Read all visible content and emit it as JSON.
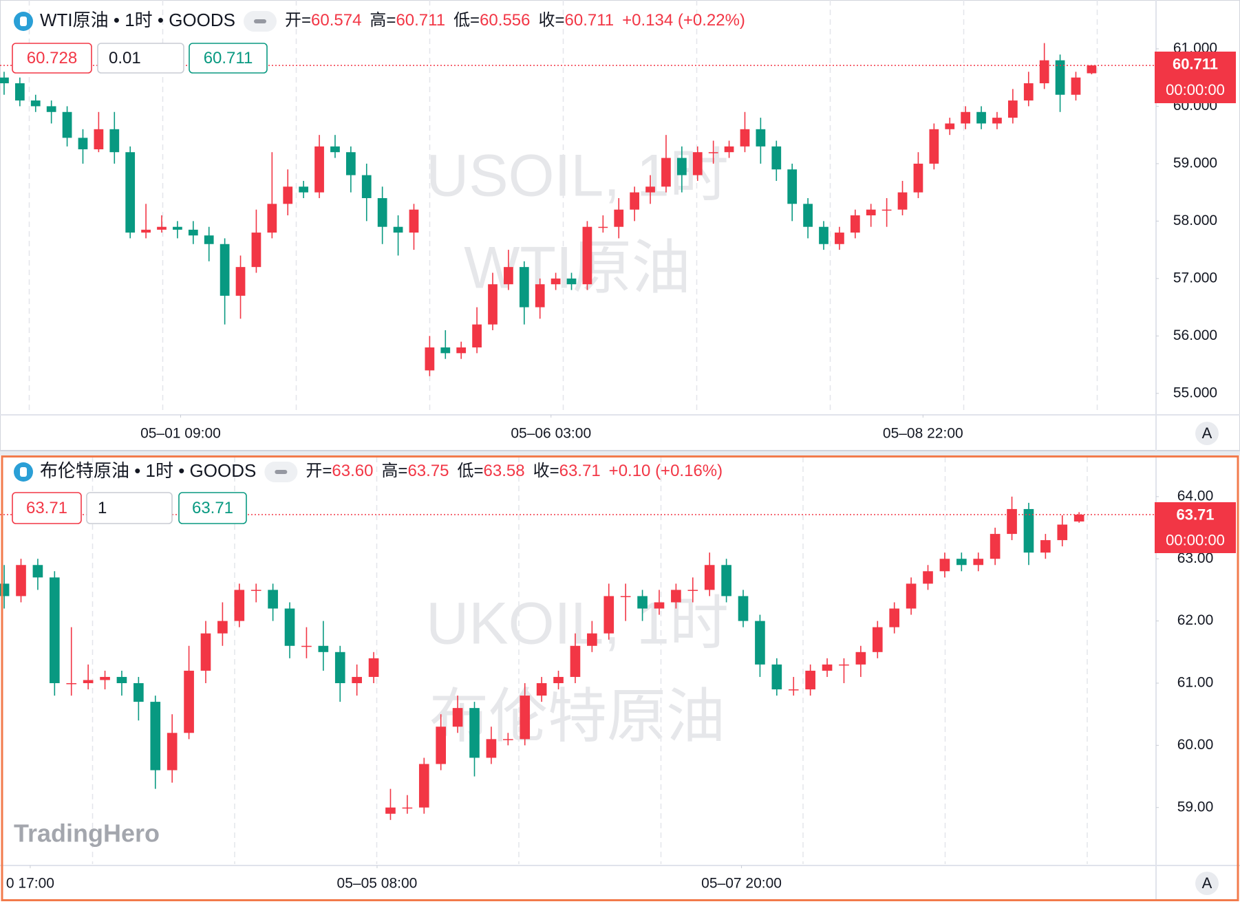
{
  "chart_data": [
    {
      "type": "candlestick",
      "symbol": "WTI原油 • 1时 • GOODS",
      "ohlc_names": [
        "开=",
        "高=",
        "低=",
        "收="
      ],
      "ohlc_values": [
        "60.574",
        "60.711",
        "60.556",
        "60.711"
      ],
      "change": "+0.134 (+0.22%)",
      "buttons": [
        "60.728",
        "0.01",
        "60.711"
      ],
      "price_tag": "60.711",
      "countdown": "00:00:00",
      "watermark": [
        "USOIL, 1时",
        "WTI原油"
      ],
      "scale_button": "A",
      "up_color": "#f23645",
      "down_color": "#089981",
      "xlim": [
        -0.26,
        73.0
      ],
      "xticks": [
        {
          "value": 11.2,
          "label": "05–01 09:00"
        },
        {
          "value": 34.7,
          "label": "05–06 03:00"
        },
        {
          "value": 58.3,
          "label": "05–08 22:00"
        }
      ],
      "ylim": [
        54.65,
        61.85
      ],
      "yticks": [
        {
          "value": 55,
          "label": "55.000"
        },
        {
          "value": 56,
          "label": "56.000"
        },
        {
          "value": 57,
          "label": "57.000"
        },
        {
          "value": 58,
          "label": "58.000"
        },
        {
          "value": 59,
          "label": "59.000"
        },
        {
          "value": 60,
          "label": "60.000"
        },
        {
          "value": 61,
          "label": "61.000"
        }
      ],
      "candles": [
        [
          60.5,
          60.6,
          60.2,
          60.4
        ],
        [
          60.4,
          60.5,
          60.0,
          60.1
        ],
        [
          60.1,
          60.2,
          59.9,
          60.0
        ],
        [
          60.0,
          60.1,
          59.7,
          59.9
        ],
        [
          59.9,
          60.0,
          59.3,
          59.45
        ],
        [
          59.45,
          59.6,
          59.0,
          59.25
        ],
        [
          59.25,
          59.9,
          59.2,
          59.6
        ],
        [
          59.6,
          59.9,
          59.0,
          59.2
        ],
        [
          59.2,
          59.3,
          57.7,
          57.8
        ],
        [
          57.8,
          58.3,
          57.7,
          57.85
        ],
        [
          57.85,
          58.1,
          57.8,
          57.9
        ],
        [
          57.9,
          58.0,
          57.7,
          57.85
        ],
        [
          57.85,
          58.0,
          57.6,
          57.75
        ],
        [
          57.75,
          57.9,
          57.3,
          57.6
        ],
        [
          57.6,
          57.7,
          56.2,
          56.7
        ],
        [
          56.7,
          57.4,
          56.3,
          57.2
        ],
        [
          57.2,
          58.2,
          57.1,
          57.8
        ],
        [
          57.8,
          59.2,
          57.7,
          58.3
        ],
        [
          58.3,
          58.9,
          58.1,
          58.6
        ],
        [
          58.6,
          58.7,
          58.4,
          58.5
        ],
        [
          58.5,
          59.5,
          58.4,
          59.3
        ],
        [
          59.3,
          59.5,
          59.1,
          59.2
        ],
        [
          59.2,
          59.3,
          58.5,
          58.8
        ],
        [
          58.8,
          59.0,
          58.0,
          58.4
        ],
        [
          58.4,
          58.6,
          57.6,
          57.9
        ],
        [
          57.9,
          58.1,
          57.4,
          57.8
        ],
        [
          57.8,
          58.3,
          57.5,
          58.2
        ],
        [
          55.4,
          56.0,
          55.3,
          55.8
        ],
        [
          55.8,
          56.1,
          55.6,
          55.7
        ],
        [
          55.7,
          55.9,
          55.6,
          55.8
        ],
        [
          55.8,
          56.5,
          55.7,
          56.2
        ],
        [
          56.2,
          57.1,
          56.1,
          56.9
        ],
        [
          56.9,
          57.5,
          56.8,
          57.2
        ],
        [
          57.2,
          57.3,
          56.2,
          56.5
        ],
        [
          56.5,
          57.0,
          56.3,
          56.9
        ],
        [
          56.9,
          57.1,
          56.8,
          57.0
        ],
        [
          57.0,
          57.1,
          56.8,
          56.9
        ],
        [
          56.9,
          58.0,
          56.8,
          57.9
        ],
        [
          57.9,
          58.1,
          57.8,
          57.9
        ],
        [
          57.9,
          58.4,
          57.7,
          58.2
        ],
        [
          58.2,
          58.6,
          58.0,
          58.5
        ],
        [
          58.5,
          58.8,
          58.3,
          58.6
        ],
        [
          58.6,
          59.5,
          58.5,
          59.1
        ],
        [
          59.1,
          59.3,
          58.5,
          58.8
        ],
        [
          58.8,
          59.3,
          58.7,
          59.2
        ],
        [
          59.2,
          59.4,
          59.0,
          59.2
        ],
        [
          59.2,
          59.4,
          59.1,
          59.3
        ],
        [
          59.3,
          59.9,
          59.2,
          59.6
        ],
        [
          59.6,
          59.8,
          59.0,
          59.3
        ],
        [
          59.3,
          59.4,
          58.7,
          58.9
        ],
        [
          58.9,
          59.0,
          58.0,
          58.3
        ],
        [
          58.3,
          58.4,
          57.7,
          57.9
        ],
        [
          57.9,
          58.0,
          57.5,
          57.6
        ],
        [
          57.6,
          57.9,
          57.5,
          57.8
        ],
        [
          57.8,
          58.2,
          57.7,
          58.1
        ],
        [
          58.1,
          58.3,
          57.9,
          58.2
        ],
        [
          58.2,
          58.4,
          57.9,
          58.2
        ],
        [
          58.2,
          58.7,
          58.1,
          58.5
        ],
        [
          58.5,
          59.2,
          58.4,
          59.0
        ],
        [
          59.0,
          59.7,
          58.9,
          59.6
        ],
        [
          59.6,
          59.8,
          59.5,
          59.7
        ],
        [
          59.7,
          60.0,
          59.6,
          59.9
        ],
        [
          59.9,
          60.0,
          59.6,
          59.7
        ],
        [
          59.7,
          59.9,
          59.6,
          59.8
        ],
        [
          59.8,
          60.3,
          59.7,
          60.1
        ],
        [
          60.1,
          60.6,
          60.0,
          60.4
        ],
        [
          60.4,
          61.1,
          60.3,
          60.8
        ],
        [
          60.8,
          60.9,
          59.9,
          60.2
        ],
        [
          60.2,
          60.6,
          60.1,
          60.5
        ],
        [
          60.574,
          60.711,
          60.556,
          60.711
        ]
      ]
    },
    {
      "type": "candlestick",
      "symbol": "布伦特原油 • 1时 • GOODS",
      "ohlc_names": [
        "开=",
        "高=",
        "低=",
        "收="
      ],
      "ohlc_values": [
        "63.60",
        "63.75",
        "63.58",
        "63.71"
      ],
      "change": "+0.10 (+0.16%)",
      "buttons": [
        "63.71",
        "1",
        "63.71"
      ],
      "price_tag": "63.71",
      "countdown": "00:00:00",
      "watermark": [
        "UKOIL, 1时",
        "布伦特原油"
      ],
      "scale_button": "A",
      "up_color": "#f23645",
      "down_color": "#089981",
      "xlim": [
        -0.25,
        68.5
      ],
      "xticks": [
        {
          "value": 1.55,
          "label": "0 17:00"
        },
        {
          "value": 22.2,
          "label": "05–05 08:00"
        },
        {
          "value": 43.9,
          "label": "05–07 20:00"
        }
      ],
      "ylim": [
        58.09,
        64.64
      ],
      "yticks": [
        {
          "value": 59,
          "label": "59.00"
        },
        {
          "value": 60,
          "label": "60.00"
        },
        {
          "value": 61,
          "label": "61.00"
        },
        {
          "value": 62,
          "label": "62.00"
        },
        {
          "value": 63,
          "label": "63.00"
        },
        {
          "value": 64,
          "label": "64.00"
        }
      ],
      "candles": [
        [
          62.6,
          62.9,
          62.2,
          62.4
        ],
        [
          62.4,
          63.0,
          62.3,
          62.9
        ],
        [
          62.9,
          63.0,
          62.5,
          62.7
        ],
        [
          62.7,
          62.8,
          60.8,
          61.0
        ],
        [
          61.0,
          61.9,
          60.8,
          61.0
        ],
        [
          61.0,
          61.3,
          60.9,
          61.05
        ],
        [
          61.05,
          61.2,
          60.9,
          61.1
        ],
        [
          61.1,
          61.2,
          60.8,
          61.0
        ],
        [
          61.0,
          61.1,
          60.4,
          60.7
        ],
        [
          60.7,
          60.8,
          59.3,
          59.6
        ],
        [
          59.6,
          60.5,
          59.4,
          60.2
        ],
        [
          60.2,
          61.6,
          60.1,
          61.2
        ],
        [
          61.2,
          62.0,
          61.0,
          61.8
        ],
        [
          61.8,
          62.3,
          61.6,
          62.0
        ],
        [
          62.0,
          62.6,
          61.9,
          62.5
        ],
        [
          62.5,
          62.6,
          62.3,
          62.5
        ],
        [
          62.5,
          62.6,
          62.0,
          62.2
        ],
        [
          62.2,
          62.3,
          61.4,
          61.6
        ],
        [
          61.6,
          61.9,
          61.4,
          61.6
        ],
        [
          61.6,
          62.0,
          61.2,
          61.5
        ],
        [
          61.5,
          61.6,
          60.7,
          61.0
        ],
        [
          61.0,
          61.3,
          60.8,
          61.1
        ],
        [
          61.1,
          61.5,
          61.0,
          61.4
        ],
        [
          58.9,
          59.3,
          58.8,
          59.0
        ],
        [
          59.0,
          59.2,
          58.9,
          59.0
        ],
        [
          59.0,
          59.8,
          58.9,
          59.7
        ],
        [
          59.7,
          60.5,
          59.6,
          60.3
        ],
        [
          60.3,
          60.8,
          60.2,
          60.6
        ],
        [
          60.6,
          60.7,
          59.5,
          59.8
        ],
        [
          59.8,
          60.3,
          59.7,
          60.1
        ],
        [
          60.1,
          60.2,
          60.0,
          60.1
        ],
        [
          60.1,
          61.0,
          60.0,
          60.8
        ],
        [
          60.8,
          61.1,
          60.7,
          61.0
        ],
        [
          61.0,
          61.2,
          60.9,
          61.1
        ],
        [
          61.1,
          61.8,
          61.0,
          61.6
        ],
        [
          61.6,
          62.0,
          61.5,
          61.8
        ],
        [
          61.8,
          62.6,
          61.7,
          62.4
        ],
        [
          62.4,
          62.6,
          62.0,
          62.4
        ],
        [
          62.4,
          62.5,
          62.0,
          62.2
        ],
        [
          62.2,
          62.5,
          62.1,
          62.3
        ],
        [
          62.3,
          62.6,
          62.2,
          62.5
        ],
        [
          62.5,
          62.7,
          62.3,
          62.5
        ],
        [
          62.5,
          63.1,
          62.4,
          62.9
        ],
        [
          62.9,
          63.0,
          62.3,
          62.4
        ],
        [
          62.4,
          62.5,
          61.9,
          62.0
        ],
        [
          62.0,
          62.1,
          61.1,
          61.3
        ],
        [
          61.3,
          61.4,
          60.8,
          60.9
        ],
        [
          60.9,
          61.1,
          60.8,
          60.9
        ],
        [
          60.9,
          61.3,
          60.8,
          61.2
        ],
        [
          61.2,
          61.4,
          61.1,
          61.3
        ],
        [
          61.3,
          61.4,
          61.0,
          61.3
        ],
        [
          61.3,
          61.6,
          61.1,
          61.5
        ],
        [
          61.5,
          62.0,
          61.4,
          61.9
        ],
        [
          61.9,
          62.3,
          61.8,
          62.2
        ],
        [
          62.2,
          62.7,
          62.1,
          62.6
        ],
        [
          62.6,
          62.9,
          62.5,
          62.8
        ],
        [
          62.8,
          63.1,
          62.7,
          63.0
        ],
        [
          63.0,
          63.1,
          62.8,
          62.9
        ],
        [
          62.9,
          63.1,
          62.8,
          63.0
        ],
        [
          63.0,
          63.5,
          62.9,
          63.4
        ],
        [
          63.4,
          64.0,
          63.3,
          63.8
        ],
        [
          63.8,
          63.9,
          62.9,
          63.1
        ],
        [
          63.1,
          63.4,
          63.0,
          63.3
        ],
        [
          63.3,
          63.7,
          63.2,
          63.55
        ],
        [
          63.6,
          63.75,
          63.58,
          63.71
        ]
      ]
    }
  ],
  "branding": "TradingHero"
}
